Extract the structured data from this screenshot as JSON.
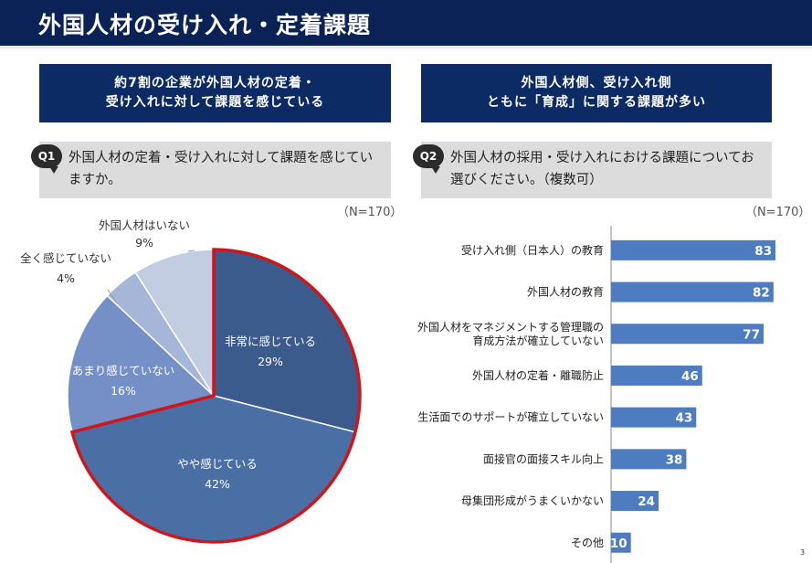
{
  "header": {
    "title": "外国人材の受け入れ・定着課題"
  },
  "banners": {
    "left": {
      "line1": "約7割の企業が外国人材の定着・",
      "line2": "受け入れに対して課題を感じている"
    },
    "right": {
      "line1": "外国人材側、受け入れ側",
      "line2": "ともに「育成」に関する課題が多い"
    }
  },
  "questions": {
    "q1": {
      "badge": "Q1",
      "text": "外国人材の定着・受け入れに対して課題を感じていますか。",
      "n": "（N=170）"
    },
    "q2": {
      "badge": "Q2",
      "text": "外国人材の採用・受け入れにおける課題についてお選びください。（複数可）",
      "n": "（N=170）"
    }
  },
  "page_number": "3",
  "chart_data": [
    {
      "type": "pie",
      "slices": [
        {
          "label": "非常に感じている",
          "value": 29,
          "display": "29%",
          "color": "#3b5b8c"
        },
        {
          "label": "やや感じている",
          "value": 42,
          "display": "42%",
          "color": "#4a6fa5"
        },
        {
          "label": "あまり感じていない",
          "value": 16,
          "display": "16%",
          "color": "#7590c6"
        },
        {
          "label": "全く感じていない",
          "value": 4,
          "display": "4%",
          "color": "#a5b6d8"
        },
        {
          "label": "外国人材はいない",
          "value": 9,
          "display": "9%",
          "color": "#c3cde2"
        }
      ],
      "highlight_color": "#d0151b"
    },
    {
      "type": "bar",
      "orientation": "horizontal",
      "categories": [
        [
          "受け入れ側（日本人）の教育"
        ],
        [
          "外国人材の教育"
        ],
        [
          "外国人材をマネジメントする管理職の",
          "育成方法が確立していない"
        ],
        [
          "外国人材の定着・離職防止"
        ],
        [
          "生活面でのサポートが確立していない"
        ],
        [
          "面接官の面接スキル向上"
        ],
        [
          "母集団形成がうまくいかない"
        ],
        [
          "その他"
        ]
      ],
      "values": [
        83,
        82,
        77,
        46,
        43,
        38,
        24,
        10
      ],
      "color": "#4e7cc0",
      "grid": false
    }
  ]
}
